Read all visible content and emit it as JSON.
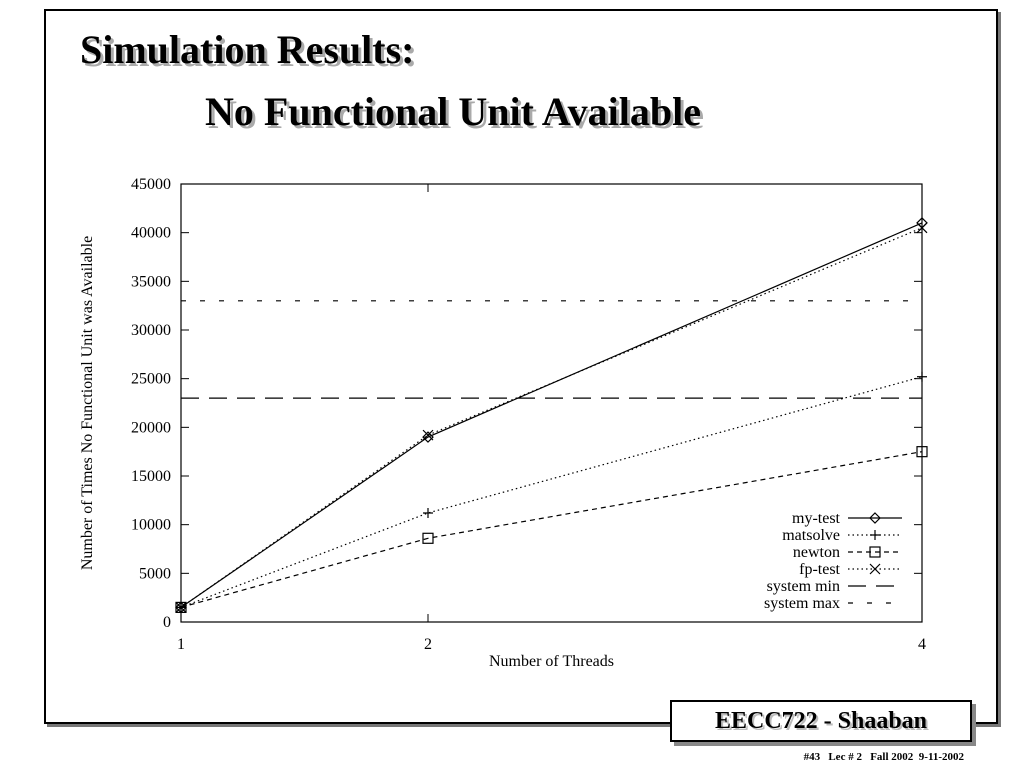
{
  "slide": {
    "title_line1": "Simulation Results:",
    "title_line2": "No Functional Unit Available",
    "footer_box": "EECC722 - Shaaban",
    "footer_note": "#43   Lec # 2   Fall 2002  9-11-2002"
  },
  "chart_data": {
    "type": "line",
    "x_label": "Number of Threads",
    "y_label": "Number of Times No Functional Unit was Available",
    "x": [
      1,
      2,
      4
    ],
    "xlim": [
      1,
      4
    ],
    "xticks": [
      1,
      2,
      4
    ],
    "ylim": [
      0,
      45000
    ],
    "yticks": [
      0,
      5000,
      10000,
      15000,
      20000,
      25000,
      30000,
      35000,
      40000,
      45000
    ],
    "legend": "lower right",
    "series": [
      {
        "name": "my-test",
        "color": "#000000",
        "dash": "solid",
        "marker": "diamond",
        "values": [
          1500,
          19000,
          41000
        ]
      },
      {
        "name": "matsolve",
        "color": "#000000",
        "dash": "dotted",
        "marker": "plus",
        "values": [
          1500,
          11200,
          25200
        ]
      },
      {
        "name": "newton",
        "color": "#000000",
        "dash": "dashed",
        "marker": "square",
        "values": [
          1500,
          8600,
          17500
        ]
      },
      {
        "name": "fp-test",
        "color": "#000000",
        "dash": "dotted",
        "marker": "cross",
        "values": [
          1500,
          19200,
          40500
        ]
      },
      {
        "name": "system min",
        "color": "#000000",
        "dash": "longdash",
        "marker": "none",
        "values": [
          23000,
          23000,
          23000
        ]
      },
      {
        "name": "system max",
        "color": "#000000",
        "dash": "shortdash",
        "marker": "none",
        "values": [
          33000,
          33000,
          33000
        ]
      }
    ]
  }
}
